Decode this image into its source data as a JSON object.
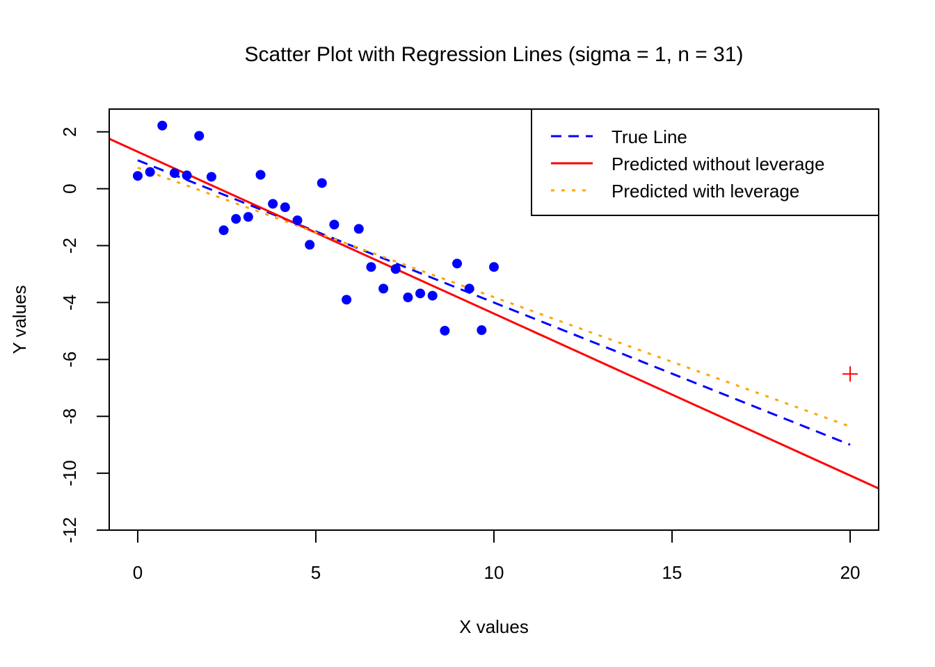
{
  "chart_data": {
    "type": "scatter",
    "title": "Scatter Plot with Regression Lines (sigma = 1, n = 31)",
    "xlabel": "X values",
    "ylabel": "Y values",
    "xlim": [
      -0.8,
      20.8
    ],
    "ylim": [
      -12,
      2.8
    ],
    "xticks": [
      0,
      5,
      10,
      15,
      20
    ],
    "xtick_labels": [
      "0",
      "5",
      "10",
      "15",
      "20"
    ],
    "yticks": [
      2,
      0,
      -2,
      -4,
      -6,
      -8,
      -10,
      -12
    ],
    "ytick_labels": [
      "2",
      "0",
      "-2",
      "-4",
      "-6",
      "-8",
      "-10",
      "-12"
    ],
    "grid": false,
    "points": {
      "color": "#0000FF",
      "x": [
        0,
        0.345,
        0.69,
        1.034,
        1.379,
        1.724,
        2.069,
        2.414,
        2.759,
        3.103,
        3.448,
        3.793,
        4.138,
        4.483,
        4.828,
        5.172,
        5.517,
        5.862,
        6.207,
        6.552,
        6.897,
        7.241,
        7.586,
        7.931,
        8.276,
        8.621,
        8.966,
        9.31,
        9.655,
        10
      ],
      "y": [
        0.45,
        0.59,
        2.22,
        0.55,
        0.47,
        1.86,
        0.42,
        -1.46,
        -1.06,
        -0.99,
        0.49,
        -0.53,
        -0.65,
        -1.11,
        -1.97,
        0.2,
        -1.26,
        -3.9,
        -1.41,
        -2.75,
        -3.51,
        -2.82,
        -3.82,
        -3.68,
        -3.76,
        -4.99,
        -2.63,
        -3.51,
        -4.97,
        -2.75
      ]
    },
    "leverage_point": {
      "x": 20,
      "y": -6.51,
      "color": "#FF0000",
      "marker": "plus"
    },
    "series": [
      {
        "name": "True Line",
        "color": "#0000FF",
        "style": "dashed",
        "x": [
          0,
          20
        ],
        "y": [
          1,
          -9
        ]
      },
      {
        "name": "Predicted without leverage",
        "color": "#FF0000",
        "style": "solid",
        "intercept": 1.3,
        "slope": -0.569,
        "x": [
          -0.8,
          20.8
        ]
      },
      {
        "name": "Predicted with leverage",
        "color": "#FFA500",
        "style": "dotted",
        "x": [
          0,
          20
        ],
        "y": [
          0.74,
          -8.36
        ]
      }
    ],
    "legend_position": "top-right"
  }
}
